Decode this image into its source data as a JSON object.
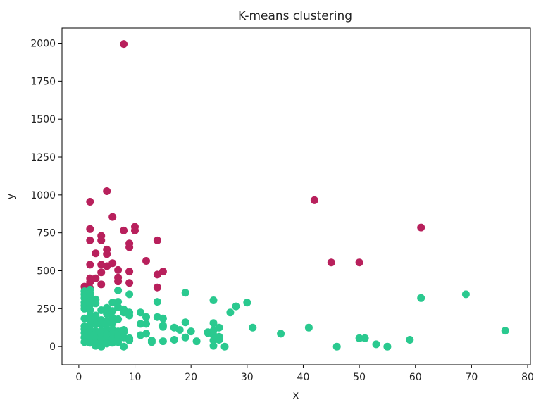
{
  "chart_data": {
    "type": "scatter",
    "title": "K-means clustering",
    "xlabel": "x",
    "ylabel": "y",
    "xlim": [
      -3,
      80.5
    ],
    "ylim": [
      -120,
      2100
    ],
    "xticks": [
      "0",
      "10",
      "20",
      "30",
      "40",
      "50",
      "60",
      "70",
      "80"
    ],
    "xtick_values": [
      0,
      10,
      20,
      30,
      40,
      50,
      60,
      70,
      80
    ],
    "yticks": [
      "0",
      "250",
      "500",
      "750",
      "1000",
      "1250",
      "1500",
      "1750",
      "2000"
    ],
    "ytick_values": [
      0,
      250,
      500,
      750,
      1000,
      1250,
      1500,
      1750,
      2000
    ],
    "grid": false,
    "legend": "none",
    "series": [
      {
        "color": "#b8205c",
        "points": [
          [
            8,
            1995
          ],
          [
            5,
            1025
          ],
          [
            2,
            955
          ],
          [
            6,
            855
          ],
          [
            2,
            775
          ],
          [
            8,
            765
          ],
          [
            10,
            790
          ],
          [
            10,
            765
          ],
          [
            4,
            730
          ],
          [
            2,
            700
          ],
          [
            4,
            700
          ],
          [
            9,
            680
          ],
          [
            9,
            655
          ],
          [
            14,
            700
          ],
          [
            5,
            640
          ],
          [
            3,
            615
          ],
          [
            5,
            610
          ],
          [
            12,
            565
          ],
          [
            6,
            550
          ],
          [
            2,
            540
          ],
          [
            4,
            540
          ],
          [
            5,
            530
          ],
          [
            7,
            505
          ],
          [
            9,
            495
          ],
          [
            15,
            495
          ],
          [
            4,
            490
          ],
          [
            14,
            475
          ],
          [
            7,
            455
          ],
          [
            2,
            450
          ],
          [
            3,
            450
          ],
          [
            7,
            430
          ],
          [
            2,
            425
          ],
          [
            9,
            420
          ],
          [
            4,
            410
          ],
          [
            14,
            390
          ],
          [
            1,
            395
          ],
          [
            2,
            385
          ],
          [
            42,
            965
          ],
          [
            45,
            555
          ],
          [
            50,
            555
          ],
          [
            61,
            785
          ]
        ]
      },
      {
        "color": "#2ac98f",
        "points": [
          [
            1,
            365
          ],
          [
            2,
            375
          ],
          [
            1,
            345
          ],
          [
            2,
            350
          ],
          [
            1,
            320
          ],
          [
            2,
            330
          ],
          [
            3,
            310
          ],
          [
            1,
            290
          ],
          [
            2,
            300
          ],
          [
            1,
            270
          ],
          [
            2,
            275
          ],
          [
            3,
            285
          ],
          [
            1,
            250
          ],
          [
            2,
            240
          ],
          [
            7,
            370
          ],
          [
            9,
            345
          ],
          [
            4,
            240
          ],
          [
            5,
            255
          ],
          [
            6,
            290
          ],
          [
            7,
            295
          ],
          [
            7,
            260
          ],
          [
            8,
            245
          ],
          [
            8,
            225
          ],
          [
            9,
            225
          ],
          [
            9,
            205
          ],
          [
            6,
            235
          ],
          [
            5,
            215
          ],
          [
            3,
            205
          ],
          [
            2,
            200
          ],
          [
            1,
            185
          ],
          [
            2,
            175
          ],
          [
            3,
            185
          ],
          [
            4,
            175
          ],
          [
            5,
            170
          ],
          [
            6,
            190
          ],
          [
            7,
            180
          ],
          [
            6,
            155
          ],
          [
            5,
            150
          ],
          [
            4,
            150
          ],
          [
            3,
            145
          ],
          [
            2,
            140
          ],
          [
            1,
            135
          ],
          [
            1,
            115
          ],
          [
            2,
            110
          ],
          [
            3,
            100
          ],
          [
            4,
            105
          ],
          [
            5,
            110
          ],
          [
            6,
            115
          ],
          [
            7,
            100
          ],
          [
            8,
            110
          ],
          [
            8,
            95
          ],
          [
            1,
            90
          ],
          [
            2,
            80
          ],
          [
            3,
            75
          ],
          [
            4,
            70
          ],
          [
            5,
            80
          ],
          [
            6,
            85
          ],
          [
            7,
            75
          ],
          [
            1,
            60
          ],
          [
            2,
            55
          ],
          [
            3,
            50
          ],
          [
            4,
            45
          ],
          [
            5,
            40
          ],
          [
            6,
            50
          ],
          [
            7,
            55
          ],
          [
            8,
            60
          ],
          [
            9,
            55
          ],
          [
            9,
            40
          ],
          [
            1,
            30
          ],
          [
            2,
            25
          ],
          [
            3,
            20
          ],
          [
            4,
            15
          ],
          [
            5,
            20
          ],
          [
            6,
            25
          ],
          [
            7,
            30
          ],
          [
            3,
            5
          ],
          [
            4,
            0
          ],
          [
            8,
            0
          ],
          [
            11,
            225
          ],
          [
            11,
            150
          ],
          [
            12,
            195
          ],
          [
            12,
            150
          ],
          [
            12,
            85
          ],
          [
            11,
            75
          ],
          [
            13,
            40
          ],
          [
            13,
            30
          ],
          [
            14,
            195
          ],
          [
            14,
            295
          ],
          [
            15,
            185
          ],
          [
            15,
            140
          ],
          [
            15,
            130
          ],
          [
            15,
            35
          ],
          [
            17,
            125
          ],
          [
            17,
            45
          ],
          [
            18,
            110
          ],
          [
            19,
            355
          ],
          [
            19,
            160
          ],
          [
            19,
            60
          ],
          [
            20,
            100
          ],
          [
            21,
            35
          ],
          [
            23,
            95
          ],
          [
            23,
            90
          ],
          [
            24,
            305
          ],
          [
            24,
            155
          ],
          [
            24,
            105
          ],
          [
            24,
            75
          ],
          [
            24,
            40
          ],
          [
            24,
            5
          ],
          [
            25,
            125
          ],
          [
            25,
            65
          ],
          [
            25,
            45
          ],
          [
            26,
            0
          ],
          [
            27,
            225
          ],
          [
            28,
            265
          ],
          [
            30,
            290
          ],
          [
            31,
            125
          ],
          [
            36,
            85
          ],
          [
            41,
            125
          ],
          [
            46,
            0
          ],
          [
            50,
            55
          ],
          [
            51,
            55
          ],
          [
            53,
            15
          ],
          [
            55,
            0
          ],
          [
            59,
            45
          ],
          [
            61,
            320
          ],
          [
            69,
            345
          ],
          [
            76,
            105
          ]
        ]
      }
    ]
  }
}
